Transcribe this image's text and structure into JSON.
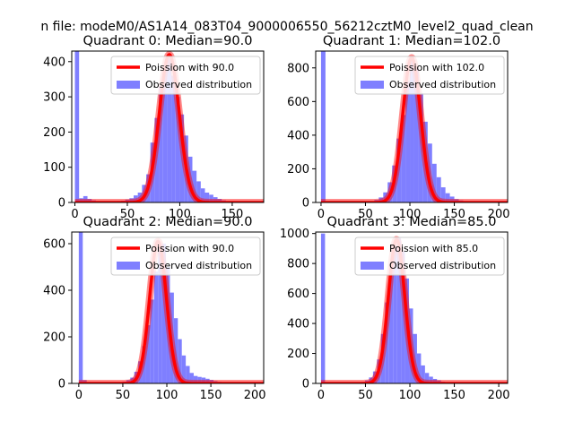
{
  "suptitle": "n file: modeM0/AS1A14_083T04_9000006550_56212cztM0_level2_quad_clean",
  "chart_data": [
    {
      "type": "bar",
      "title": "Quadrant 0: Median=90.0",
      "xlim": [
        -3,
        180
      ],
      "ylim": [
        0,
        430
      ],
      "xticks": [
        0,
        50,
        100,
        150
      ],
      "yticks": [
        0,
        100,
        200,
        300,
        400
      ],
      "bin_width": 4,
      "legend": {
        "placement": "top-right",
        "line_label": "Poission with 90.0",
        "hist_label": "Observed distribution"
      },
      "poisson_mean": 90,
      "poisson_peak": 420,
      "x": [
        0,
        4,
        8,
        12,
        16,
        20,
        24,
        28,
        32,
        36,
        40,
        44,
        48,
        52,
        56,
        60,
        64,
        68,
        72,
        76,
        80,
        84,
        88,
        92,
        96,
        100,
        104,
        108,
        112,
        116,
        120,
        124,
        128,
        132,
        136,
        140,
        144,
        148,
        152,
        156,
        160,
        164,
        168,
        172,
        176
      ],
      "values": [
        430,
        12,
        18,
        10,
        6,
        4,
        3,
        3,
        2,
        3,
        4,
        5,
        8,
        12,
        20,
        28,
        50,
        80,
        170,
        240,
        330,
        390,
        410,
        360,
        300,
        250,
        190,
        130,
        90,
        60,
        40,
        28,
        22,
        15,
        10,
        6,
        4,
        3,
        2,
        1,
        1,
        0,
        0,
        0,
        0
      ]
    },
    {
      "type": "bar",
      "title": "Quadrant 1: Median=102.0",
      "xlim": [
        -6,
        210
      ],
      "ylim": [
        0,
        900
      ],
      "xticks": [
        0,
        50,
        100,
        150,
        200
      ],
      "yticks": [
        0,
        200,
        400,
        600,
        800
      ],
      "bin_width": 5,
      "legend": {
        "placement": "top-right",
        "line_label": "Poission with 102.0",
        "hist_label": "Observed distribution"
      },
      "poisson_mean": 102,
      "poisson_peak": 860,
      "x": [
        0,
        5,
        10,
        15,
        20,
        25,
        30,
        35,
        40,
        45,
        50,
        55,
        60,
        65,
        70,
        75,
        80,
        85,
        90,
        95,
        100,
        105,
        110,
        115,
        120,
        125,
        130,
        135,
        140,
        145,
        150,
        155,
        160,
        165,
        170,
        175,
        180,
        185,
        190,
        195,
        200
      ],
      "values": [
        900,
        5,
        4,
        3,
        2,
        2,
        2,
        2,
        3,
        4,
        5,
        8,
        15,
        30,
        60,
        120,
        220,
        380,
        520,
        720,
        860,
        800,
        650,
        480,
        350,
        230,
        150,
        90,
        55,
        35,
        20,
        12,
        8,
        5,
        3,
        2,
        1,
        1,
        0,
        0,
        0
      ]
    },
    {
      "type": "bar",
      "title": "Quadrant 2: Median=90.0",
      "xlim": [
        -8,
        210
      ],
      "ylim": [
        0,
        650
      ],
      "xticks": [
        0,
        50,
        100,
        150,
        200
      ],
      "yticks": [
        0,
        200,
        400,
        600
      ],
      "bin_width": 4.5,
      "legend": {
        "placement": "top-right",
        "line_label": "Poission with 90.0",
        "hist_label": "Observed distribution"
      },
      "poisson_mean": 90,
      "poisson_peak": 610,
      "x": [
        0,
        4.5,
        9,
        13.5,
        18,
        22.5,
        27,
        31.5,
        36,
        40.5,
        45,
        49.5,
        54,
        58.5,
        63,
        67.5,
        72,
        76.5,
        81,
        85.5,
        90,
        94.5,
        99,
        103.5,
        108,
        112.5,
        117,
        121.5,
        126,
        130.5,
        135,
        139.5,
        144,
        148.5,
        153,
        157.5,
        162,
        166.5,
        171,
        175.5,
        180,
        184.5,
        189,
        193.5,
        198
      ],
      "values": [
        650,
        14,
        6,
        4,
        3,
        3,
        2,
        2,
        3,
        4,
        5,
        8,
        14,
        25,
        50,
        95,
        160,
        250,
        360,
        480,
        590,
        600,
        500,
        390,
        280,
        190,
        120,
        75,
        45,
        32,
        28,
        25,
        20,
        15,
        10,
        7,
        5,
        3,
        2,
        1,
        1,
        0,
        0,
        0,
        0
      ]
    },
    {
      "type": "bar",
      "title": "Quadrant 3: Median=85.0",
      "xlim": [
        -6,
        210
      ],
      "ylim": [
        0,
        1010
      ],
      "xticks": [
        0,
        50,
        100,
        150,
        200
      ],
      "yticks": [
        0,
        200,
        400,
        600,
        800,
        1000
      ],
      "bin_width": 4.5,
      "legend": {
        "placement": "top-right",
        "line_label": "Poission with 85.0",
        "hist_label": "Observed distribution"
      },
      "poisson_mean": 85,
      "poisson_peak": 960,
      "x": [
        0,
        4.5,
        9,
        13.5,
        18,
        22.5,
        27,
        31.5,
        36,
        40.5,
        45,
        49.5,
        54,
        58.5,
        63,
        67.5,
        72,
        76.5,
        81,
        85.5,
        90,
        94.5,
        99,
        103.5,
        108,
        112.5,
        117,
        121.5,
        126,
        130.5,
        135,
        139.5,
        144,
        148.5,
        153,
        157.5,
        162,
        166.5,
        171,
        175.5,
        180,
        184.5,
        189,
        193.5,
        198
      ],
      "values": [
        1000,
        6,
        4,
        3,
        2,
        2,
        2,
        3,
        4,
        6,
        10,
        20,
        40,
        80,
        160,
        330,
        540,
        760,
        910,
        970,
        880,
        700,
        500,
        330,
        200,
        120,
        70,
        45,
        30,
        20,
        12,
        8,
        5,
        3,
        2,
        1,
        1,
        0,
        0,
        0,
        0,
        0,
        0,
        0,
        0
      ]
    }
  ]
}
